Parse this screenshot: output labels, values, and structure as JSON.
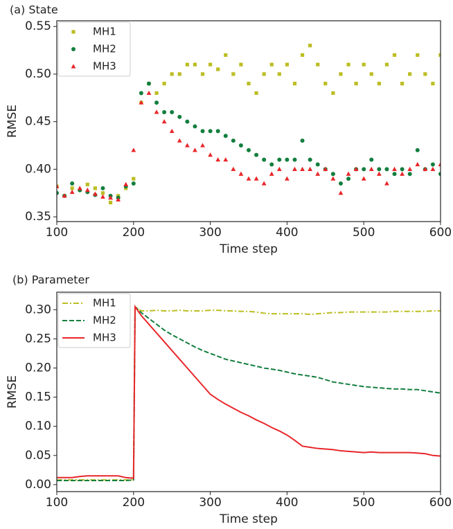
{
  "chart_data": [
    {
      "type": "scatter",
      "title": "(a) State",
      "xlabel": "Time step",
      "ylabel": "RMSE",
      "x": [
        100,
        110,
        120,
        130,
        140,
        150,
        160,
        170,
        180,
        190,
        200,
        210,
        220,
        230,
        240,
        250,
        260,
        270,
        280,
        290,
        300,
        310,
        320,
        330,
        340,
        350,
        360,
        370,
        380,
        390,
        400,
        410,
        420,
        430,
        440,
        450,
        460,
        470,
        480,
        490,
        500,
        510,
        520,
        530,
        540,
        550,
        560,
        570,
        580,
        590,
        600
      ],
      "series": [
        {
          "name": "MH1",
          "color": "#bcbd22",
          "marker": "square",
          "values": [
            0.382,
            0.372,
            0.38,
            0.378,
            0.384,
            0.38,
            0.375,
            0.365,
            0.372,
            0.38,
            0.39,
            0.47,
            0.49,
            0.48,
            0.49,
            0.5,
            0.5,
            0.51,
            0.51,
            0.5,
            0.51,
            0.505,
            0.52,
            0.5,
            0.51,
            0.49,
            0.48,
            0.5,
            0.51,
            0.5,
            0.51,
            0.49,
            0.52,
            0.53,
            0.51,
            0.49,
            0.48,
            0.5,
            0.51,
            0.49,
            0.51,
            0.5,
            0.49,
            0.51,
            0.52,
            0.49,
            0.5,
            0.52,
            0.5,
            0.49,
            0.52
          ]
        },
        {
          "name": "MH2",
          "color": "#127e3e",
          "marker": "circle",
          "values": [
            0.375,
            0.372,
            0.385,
            0.378,
            0.376,
            0.373,
            0.38,
            0.372,
            0.37,
            0.382,
            0.385,
            0.48,
            0.49,
            0.47,
            0.46,
            0.46,
            0.455,
            0.45,
            0.445,
            0.44,
            0.44,
            0.44,
            0.435,
            0.43,
            0.425,
            0.42,
            0.415,
            0.41,
            0.405,
            0.41,
            0.41,
            0.41,
            0.43,
            0.41,
            0.405,
            0.4,
            0.395,
            0.385,
            0.39,
            0.4,
            0.4,
            0.41,
            0.4,
            0.4,
            0.395,
            0.4,
            0.395,
            0.42,
            0.4,
            0.405,
            0.395
          ]
        },
        {
          "name": "MH3",
          "color": "#e8262a",
          "marker": "triangle",
          "values": [
            0.382,
            0.372,
            0.376,
            0.38,
            0.378,
            0.374,
            0.371,
            0.37,
            0.368,
            0.384,
            0.42,
            0.47,
            0.48,
            0.46,
            0.45,
            0.44,
            0.43,
            0.425,
            0.42,
            0.425,
            0.415,
            0.41,
            0.41,
            0.4,
            0.395,
            0.39,
            0.39,
            0.385,
            0.395,
            0.4,
            0.39,
            0.4,
            0.4,
            0.4,
            0.395,
            0.4,
            0.39,
            0.375,
            0.395,
            0.4,
            0.39,
            0.4,
            0.395,
            0.385,
            0.4,
            0.395,
            0.4,
            0.405,
            0.4,
            0.4,
            0.405
          ]
        }
      ],
      "xlim": [
        100,
        600
      ],
      "xticks": [
        100,
        200,
        300,
        400,
        500,
        600
      ],
      "ylim": [
        0.345,
        0.556
      ],
      "yticks": [
        0.35,
        {
          "value": 0.4,
          "label": "0.40"
        },
        0.45,
        {
          "value": 0.5,
          "label": "0.50"
        },
        0.55
      ],
      "legend": "upper left"
    },
    {
      "type": "line",
      "title": "(b) Parameter",
      "xlabel": "Time step",
      "ylabel": "RMSE",
      "x": [
        100,
        110,
        120,
        130,
        140,
        150,
        160,
        170,
        180,
        190,
        200,
        202,
        210,
        220,
        230,
        240,
        250,
        260,
        270,
        280,
        290,
        300,
        310,
        320,
        330,
        340,
        350,
        360,
        370,
        380,
        390,
        400,
        410,
        420,
        430,
        440,
        450,
        460,
        470,
        480,
        490,
        500,
        510,
        520,
        530,
        540,
        550,
        560,
        570,
        580,
        590,
        600
      ],
      "series": [
        {
          "name": "MH1",
          "color": "#bcbd22",
          "linestyle": "dashdot",
          "values": [
            0.008,
            0.008,
            0.008,
            0.008,
            0.008,
            0.008,
            0.008,
            0.008,
            0.008,
            0.008,
            0.008,
            0.305,
            0.298,
            0.298,
            0.299,
            0.298,
            0.298,
            0.299,
            0.298,
            0.298,
            0.298,
            0.299,
            0.299,
            0.298,
            0.298,
            0.297,
            0.297,
            0.296,
            0.294,
            0.293,
            0.293,
            0.293,
            0.293,
            0.293,
            0.292,
            0.293,
            0.294,
            0.295,
            0.295,
            0.296,
            0.296,
            0.296,
            0.296,
            0.296,
            0.296,
            0.297,
            0.297,
            0.297,
            0.297,
            0.297,
            0.298,
            0.298
          ]
        },
        {
          "name": "MH2",
          "color": "#127e3e",
          "linestyle": "dashed",
          "values": [
            0.007,
            0.007,
            0.007,
            0.007,
            0.007,
            0.007,
            0.007,
            0.007,
            0.007,
            0.007,
            0.008,
            0.305,
            0.295,
            0.285,
            0.275,
            0.265,
            0.257,
            0.25,
            0.243,
            0.236,
            0.23,
            0.225,
            0.22,
            0.215,
            0.212,
            0.209,
            0.206,
            0.203,
            0.2,
            0.198,
            0.196,
            0.193,
            0.19,
            0.188,
            0.186,
            0.184,
            0.18,
            0.176,
            0.174,
            0.172,
            0.17,
            0.168,
            0.167,
            0.166,
            0.165,
            0.164,
            0.164,
            0.163,
            0.163,
            0.161,
            0.159,
            0.157
          ]
        },
        {
          "name": "MH3",
          "color": "#e8262a",
          "linestyle": "solid",
          "values": [
            0.012,
            0.012,
            0.012,
            0.014,
            0.015,
            0.015,
            0.015,
            0.015,
            0.015,
            0.012,
            0.011,
            0.305,
            0.29,
            0.275,
            0.26,
            0.245,
            0.23,
            0.215,
            0.2,
            0.185,
            0.17,
            0.155,
            0.146,
            0.138,
            0.131,
            0.124,
            0.118,
            0.111,
            0.105,
            0.098,
            0.092,
            0.085,
            0.076,
            0.066,
            0.064,
            0.062,
            0.061,
            0.06,
            0.058,
            0.057,
            0.056,
            0.055,
            0.056,
            0.055,
            0.055,
            0.055,
            0.055,
            0.055,
            0.054,
            0.053,
            0.05,
            0.049
          ]
        }
      ],
      "xlim": [
        100,
        600
      ],
      "xticks": [
        100,
        200,
        300,
        400,
        500,
        600
      ],
      "ylim": [
        -0.012,
        0.33
      ],
      "yticks": [
        {
          "value": 0,
          "label": "0.00"
        },
        0.05,
        {
          "value": 0.1,
          "label": "0.10"
        },
        0.15,
        {
          "value": 0.2,
          "label": "0.20"
        },
        0.25,
        {
          "value": 0.3,
          "label": "0.30"
        }
      ],
      "legend": "upper left"
    }
  ]
}
